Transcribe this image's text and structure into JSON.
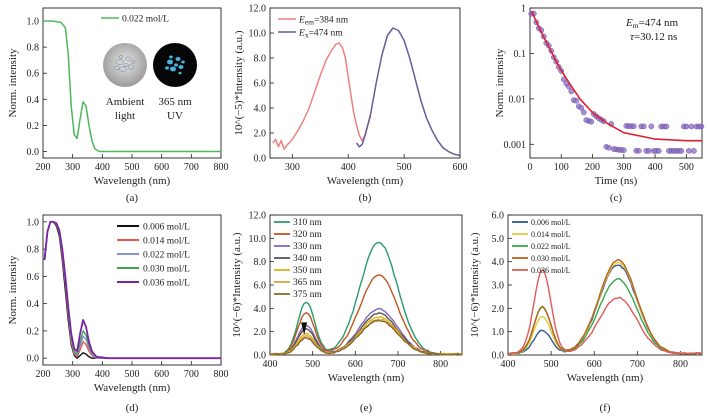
{
  "chart_data": [
    {
      "id": "a",
      "type": "line",
      "panel_label": "(a)",
      "xlabel": "Wavelength (nm)",
      "ylabel": "Norm. intensity",
      "xlim": [
        200,
        800
      ],
      "ylim": [
        -0.05,
        1.1
      ],
      "xticks": [
        200,
        300,
        400,
        500,
        600,
        700,
        800
      ],
      "yticks": [
        "0.0",
        "0.2",
        "0.4",
        "0.6",
        "0.8",
        "1.0"
      ],
      "legend_position": "top-right",
      "series": [
        {
          "name": "0.022 mol/L",
          "color": "#4db85a",
          "x": [
            200,
            230,
            260,
            275,
            285,
            295,
            305,
            315,
            325,
            335,
            345,
            355,
            365,
            375,
            390,
            420,
            500,
            600,
            700,
            800
          ],
          "y": [
            1.0,
            1.0,
            0.99,
            0.95,
            0.75,
            0.35,
            0.13,
            0.1,
            0.25,
            0.38,
            0.35,
            0.2,
            0.08,
            0.02,
            0.0,
            0.0,
            0.0,
            0.0,
            0.0,
            0.0
          ]
        }
      ],
      "insets": [
        {
          "caption": [
            "Ambient",
            "light"
          ],
          "kind": "photo-ambient"
        },
        {
          "caption": [
            "365 nm",
            "UV"
          ],
          "kind": "photo-uv"
        }
      ]
    },
    {
      "id": "b",
      "type": "line",
      "panel_label": "(b)",
      "xlabel": "Wavelength (nm)",
      "ylabel": "10^(−5)*Intensity (a.u.)",
      "xlim": [
        260,
        600
      ],
      "ylim": [
        0,
        12
      ],
      "xticks": [
        300,
        400,
        500,
        600
      ],
      "yticks": [
        "0.0",
        "2.0",
        "4.0",
        "6.0",
        "8.0",
        "10.0",
        "12.0"
      ],
      "legend_position": "top-left",
      "series": [
        {
          "name_main": "E",
          "name_sub": "em",
          "name_value": "=384 nm",
          "color": "#f08080",
          "x": [
            265,
            270,
            275,
            280,
            285,
            290,
            300,
            310,
            320,
            330,
            340,
            350,
            360,
            370,
            378,
            384,
            390,
            395,
            400,
            405,
            410,
            415,
            420,
            425,
            430,
            435,
            440
          ],
          "y": [
            1.2,
            1.5,
            0.9,
            1.4,
            0.7,
            1.0,
            1.5,
            2.2,
            3.0,
            4.0,
            5.3,
            6.6,
            7.8,
            8.6,
            9.1,
            9.2,
            8.8,
            8.0,
            6.5,
            5.0,
            3.6,
            2.6,
            1.8,
            1.4,
            1.8,
            2.6,
            3.4
          ]
        },
        {
          "name_main": "E",
          "name_sub": "x",
          "name_value": "=474 nm",
          "color": "#6a5a98",
          "x": [
            415,
            420,
            425,
            430,
            440,
            450,
            460,
            470,
            480,
            490,
            500,
            510,
            520,
            530,
            540,
            550,
            560,
            570,
            580,
            590,
            600
          ],
          "y": [
            1.2,
            0.9,
            1.1,
            1.8,
            3.5,
            6.0,
            8.2,
            9.8,
            10.4,
            10.2,
            9.4,
            8.0,
            6.3,
            4.6,
            3.2,
            2.2,
            1.4,
            0.8,
            0.5,
            0.3,
            0.2
          ]
        }
      ]
    },
    {
      "id": "c",
      "type": "scatter",
      "panel_label": "(c)",
      "yscale": "log",
      "xlabel": "Time (ns)",
      "ylabel": "Norm. intensity",
      "xlim": [
        0,
        550
      ],
      "ylim": [
        0.0005,
        1
      ],
      "xticks": [
        0,
        100,
        200,
        300,
        400,
        500
      ],
      "ytick_values": [
        1,
        0.1,
        0.01,
        0.001
      ],
      "ytick_labels": [
        "1",
        "0.1",
        "0.01",
        "0.001"
      ],
      "ann_main": "E",
      "ann_sub": "m",
      "ann_value": "=474 nm",
      "ann_tau_symbol": "τ",
      "ann_tau_value": "=30.12 ns",
      "decay": {
        "color": "#8a6cc4",
        "tau": 30.12,
        "baseline": 0.0013,
        "x_step": 8
      },
      "fit": {
        "color": "#dd2233",
        "x": [
          5,
          20,
          40,
          60,
          80,
          100,
          130,
          160,
          200,
          250,
          300,
          400,
          500,
          550
        ],
        "y": [
          0.85,
          0.5,
          0.26,
          0.14,
          0.075,
          0.042,
          0.02,
          0.01,
          0.005,
          0.0028,
          0.0018,
          0.0013,
          0.0012,
          0.0012
        ]
      }
    },
    {
      "id": "d",
      "type": "line",
      "panel_label": "(d)",
      "xlabel": "Wavelength (nm)",
      "ylabel": "Norm. intensity",
      "xlim": [
        200,
        800
      ],
      "ylim": [
        -0.05,
        1.05
      ],
      "xticks": [
        200,
        300,
        400,
        500,
        600,
        700,
        800
      ],
      "yticks": [
        "0.0",
        "0.2",
        "0.4",
        "0.6",
        "0.8",
        "1.0"
      ],
      "legend_position": "top-right",
      "x": [
        205,
        215,
        225,
        235,
        245,
        255,
        265,
        275,
        285,
        295,
        305,
        315,
        325,
        335,
        345,
        355,
        365,
        380,
        420,
        500,
        600,
        700,
        800
      ],
      "series": [
        {
          "name": "0.006 mol/L",
          "color": "#111111",
          "y": [
            0.72,
            0.93,
            1.0,
            1.0,
            0.97,
            0.9,
            0.72,
            0.5,
            0.28,
            0.1,
            0.02,
            0.0,
            0.02,
            0.04,
            0.03,
            0.01,
            0.0,
            0.0,
            0.0,
            0.0,
            0.0,
            0.0,
            0.0
          ]
        },
        {
          "name": "0.014 mol/L",
          "color": "#e4584a",
          "y": [
            0.72,
            0.93,
            1.0,
            1.0,
            0.98,
            0.92,
            0.75,
            0.55,
            0.32,
            0.12,
            0.03,
            0.01,
            0.06,
            0.12,
            0.1,
            0.05,
            0.02,
            0.0,
            0.0,
            0.0,
            0.0,
            0.0,
            0.0
          ]
        },
        {
          "name": "0.022 mol/L",
          "color": "#8b8fd8",
          "y": [
            0.72,
            0.93,
            1.0,
            1.0,
            0.98,
            0.93,
            0.77,
            0.57,
            0.34,
            0.14,
            0.04,
            0.02,
            0.09,
            0.16,
            0.14,
            0.07,
            0.03,
            0.0,
            0.0,
            0.0,
            0.0,
            0.0,
            0.0
          ]
        },
        {
          "name": "0.030 mol/L",
          "color": "#3aa64a",
          "y": [
            0.72,
            0.93,
            1.0,
            1.0,
            0.98,
            0.93,
            0.78,
            0.58,
            0.35,
            0.15,
            0.05,
            0.03,
            0.12,
            0.2,
            0.17,
            0.09,
            0.04,
            0.01,
            0.0,
            0.0,
            0.0,
            0.0,
            0.0
          ]
        },
        {
          "name": "0.036 mol/L",
          "color": "#7a22a8",
          "y": [
            0.72,
            0.93,
            1.0,
            1.0,
            0.99,
            0.94,
            0.8,
            0.6,
            0.38,
            0.18,
            0.07,
            0.05,
            0.18,
            0.28,
            0.23,
            0.12,
            0.05,
            0.01,
            0.0,
            0.0,
            0.0,
            0.0,
            0.0
          ]
        }
      ]
    },
    {
      "id": "e",
      "type": "line",
      "panel_label": "(e)",
      "xlabel": "Wavelength (nm)",
      "ylabel": "10^(−6)*Intensity (a.u.)",
      "xlim": [
        400,
        850
      ],
      "ylim": [
        0,
        12
      ],
      "xticks": [
        400,
        500,
        600,
        700,
        800
      ],
      "yticks": [
        "0.0",
        "2.0",
        "4.0",
        "6.0",
        "8.0",
        "10.0",
        "12.0"
      ],
      "legend_position": "top-left",
      "shape": {
        "p1": 485,
        "w1": 28,
        "p2": 655,
        "w2": 62
      },
      "series": [
        {
          "name": "310 nm",
          "color": "#2a9a6e",
          "a1": 4.5,
          "a2": 9.6
        },
        {
          "name": "320 nm",
          "color": "#c0561e",
          "a1": 3.6,
          "a2": 6.8
        },
        {
          "name": "330 nm",
          "color": "#8467b8",
          "a1": 2.5,
          "a2": 3.9
        },
        {
          "name": "340 nm",
          "color": "#555555",
          "a1": 2.2,
          "a2": 3.5
        },
        {
          "name": "350 nm",
          "color": "#e0b020",
          "a1": 1.8,
          "a2": 3.2
        },
        {
          "name": "365 nm",
          "color": "#d8a838",
          "a1": 1.6,
          "a2": 3.0
        },
        {
          "name": "375 nm",
          "color": "#8a6a2a",
          "a1": 1.4,
          "a2": 2.9
        }
      ]
    },
    {
      "id": "f",
      "type": "line",
      "panel_label": "(f)",
      "xlabel": "Wavelength (nm)",
      "ylabel": "10^(−6)*Intensity (a.u.)",
      "xlim": [
        400,
        850
      ],
      "ylim": [
        0,
        6
      ],
      "xticks": [
        400,
        500,
        600,
        700,
        800
      ],
      "yticks": [
        "0.0",
        "1.0",
        "2.0",
        "3.0",
        "4.0",
        "5.0",
        "6.0"
      ],
      "legend_position": "top-left",
      "shape": {
        "p1": 480,
        "w1": 28,
        "p2": 655,
        "w2": 62
      },
      "series": [
        {
          "name": "0.006 mol/L",
          "color": "#2e5a98",
          "a1": 1.0,
          "a2": 3.8
        },
        {
          "name": "0.014 mol/L",
          "color": "#e8c83a",
          "a1": 1.6,
          "a2": 3.9
        },
        {
          "name": "0.022 mol/L",
          "color": "#3aa64a",
          "a1": 2.0,
          "a2": 3.2
        },
        {
          "name": "0.030 mol/L",
          "color": "#b8621c",
          "a1": 2.0,
          "a2": 4.0
        },
        {
          "name": "0.036 mol/L",
          "color": "#e05a5a",
          "a1": 3.6,
          "a2": 2.4
        }
      ]
    }
  ]
}
